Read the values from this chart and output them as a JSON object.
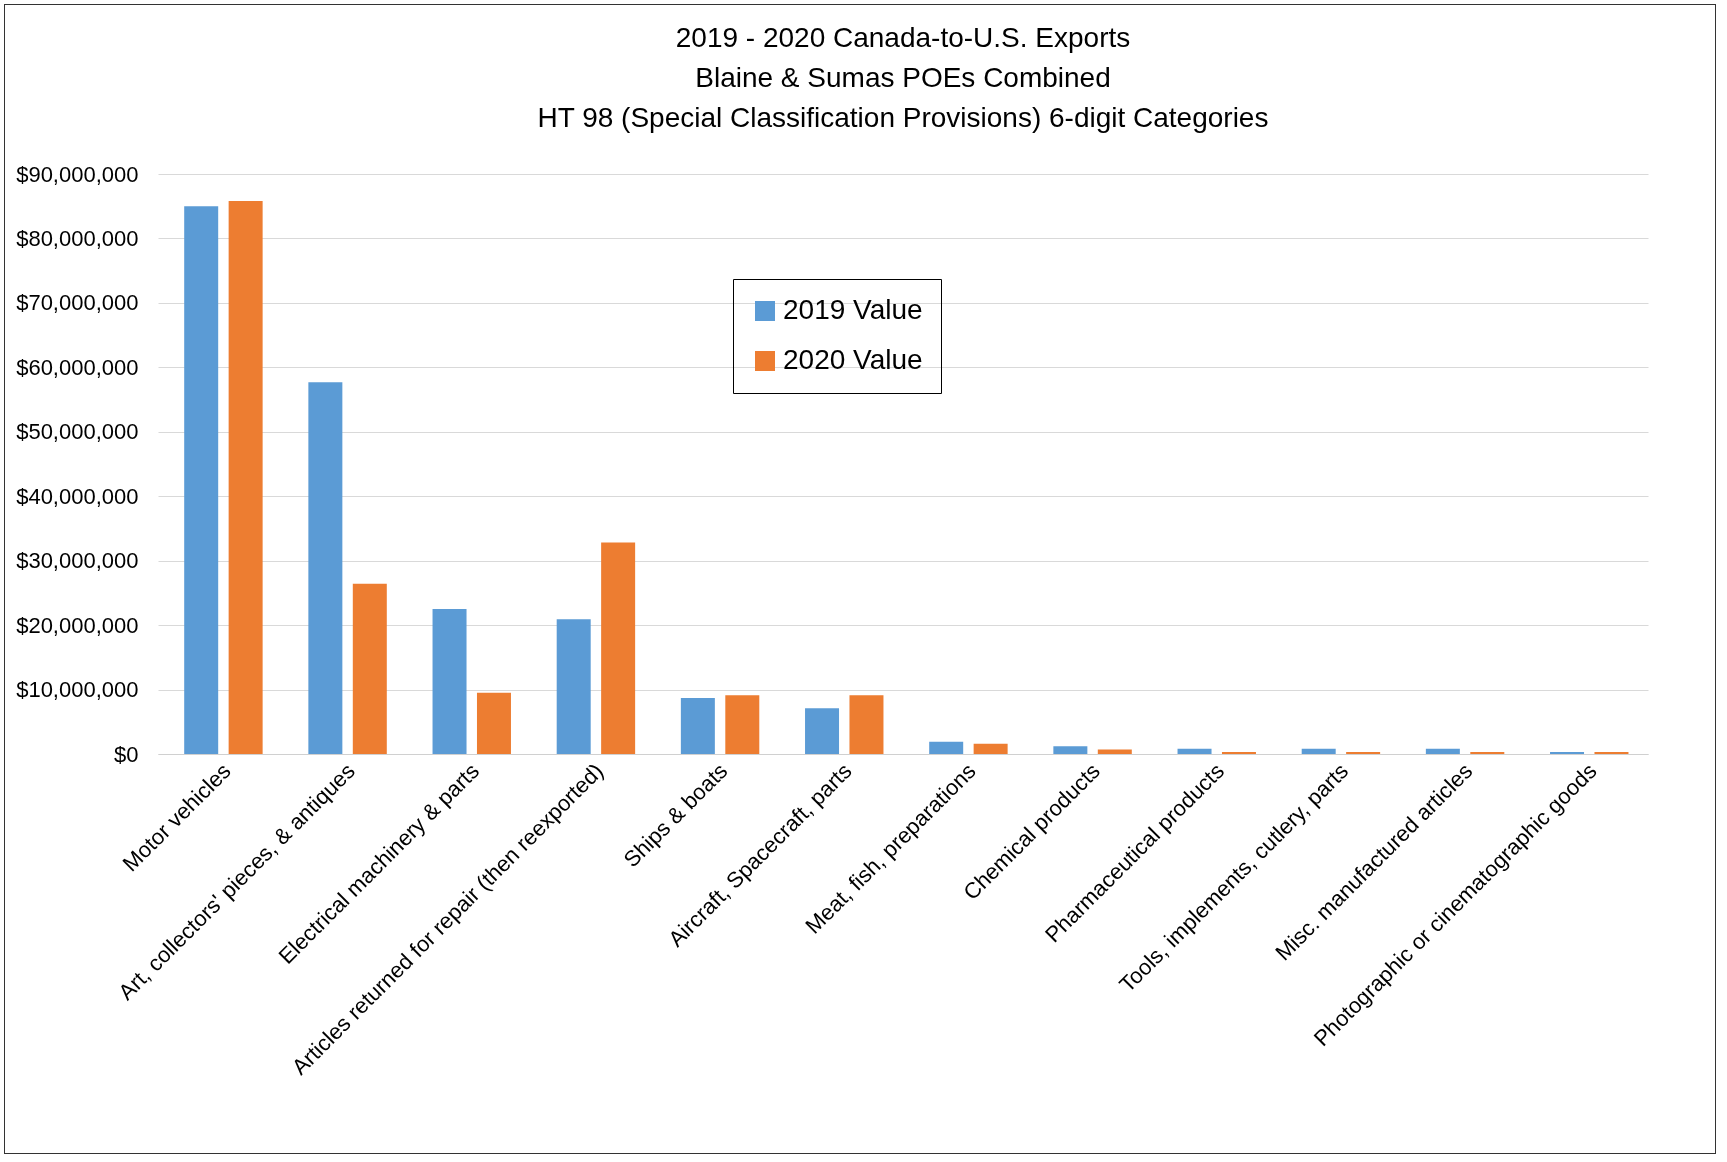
{
  "chart_data": {
    "type": "bar",
    "title": "2019 - 2020 Canada-to-U.S. Exports\nBlaine & Sumas POEs Combined\nHT 98 (Special Classification Provisions) 6-digit Categories",
    "categories": [
      "Motor vehicles",
      "Art, collectors' pieces, & antiques",
      "Electrical machinery & parts",
      "Articles returned for repair (then reexported)",
      "Ships & boats",
      "Aircraft, Spacecraft, parts",
      "Meat, fish, preparations",
      "Chemical products",
      "Pharmaceutical products",
      "Tools, implements, cutlery, parts",
      "Misc. manufactured articles",
      "Photographic or cinematographic goods"
    ],
    "series": [
      {
        "name": "2019 Value",
        "color": "#5b9bd5",
        "values": [
          85000000,
          57700000,
          22500000,
          20900000,
          8700000,
          7100000,
          1900000,
          1200000,
          800000,
          800000,
          800000,
          300000
        ]
      },
      {
        "name": "2020 Value",
        "color": "#ed7d31",
        "values": [
          85800000,
          26400000,
          9500000,
          32800000,
          9100000,
          9100000,
          1600000,
          700000,
          300000,
          300000,
          300000,
          300000
        ]
      }
    ],
    "ylim": [
      0,
      90000000
    ],
    "yticks": [
      {
        "value": 0,
        "label": "$0"
      },
      {
        "value": 10000000,
        "label": "$10,000,000"
      },
      {
        "value": 20000000,
        "label": "$20,000,000"
      },
      {
        "value": 30000000,
        "label": "$30,000,000"
      },
      {
        "value": 40000000,
        "label": "$40,000,000"
      },
      {
        "value": 50000000,
        "label": "$50,000,000"
      },
      {
        "value": 60000000,
        "label": "$60,000,000"
      },
      {
        "value": 70000000,
        "label": "$70,000,000"
      },
      {
        "value": 80000000,
        "label": "$80,000,000"
      },
      {
        "value": 90000000,
        "label": "$90,000,000"
      }
    ],
    "grid": "y",
    "legend": "top"
  }
}
